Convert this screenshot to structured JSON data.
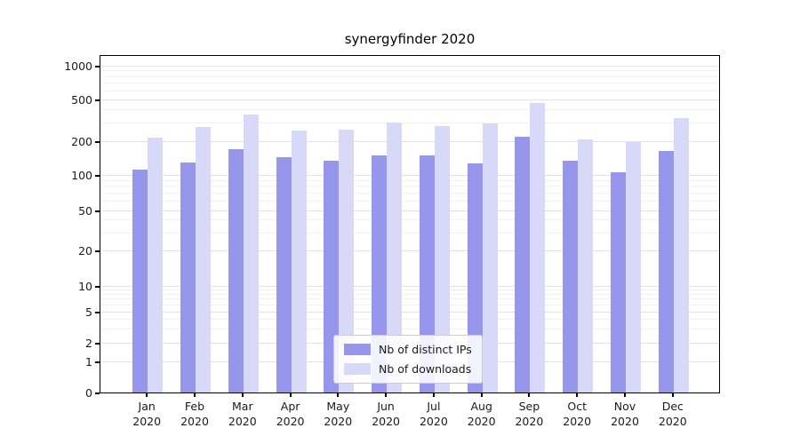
{
  "chart_data": {
    "type": "bar",
    "title": "synergyfinder 2020",
    "categories": [
      "Jan 2020",
      "Feb 2020",
      "Mar 2020",
      "Apr 2020",
      "May 2020",
      "Jun 2020",
      "Jul 2020",
      "Aug 2020",
      "Sep 2020",
      "Oct 2020",
      "Nov 2020",
      "Dec 2020"
    ],
    "series": [
      {
        "name": "Nb of distinct IPs",
        "color": "#9696ec",
        "values": [
          112,
          130,
          170,
          145,
          135,
          150,
          150,
          128,
          220,
          135,
          105,
          165
        ]
      },
      {
        "name": "Nb of downloads",
        "color": "#d8d8f8",
        "values": [
          215,
          275,
          360,
          255,
          260,
          300,
          280,
          295,
          465,
          210,
          195,
          330
        ]
      }
    ],
    "y_axis": {
      "scale": "symlog",
      "ticks": [
        0,
        1,
        2,
        5,
        10,
        20,
        50,
        100,
        200,
        500,
        1000
      ],
      "range": [
        0,
        1200
      ]
    },
    "x_axis": {
      "label": ""
    },
    "grid": "horizontal",
    "legend_position": "bottom-center-inside"
  }
}
